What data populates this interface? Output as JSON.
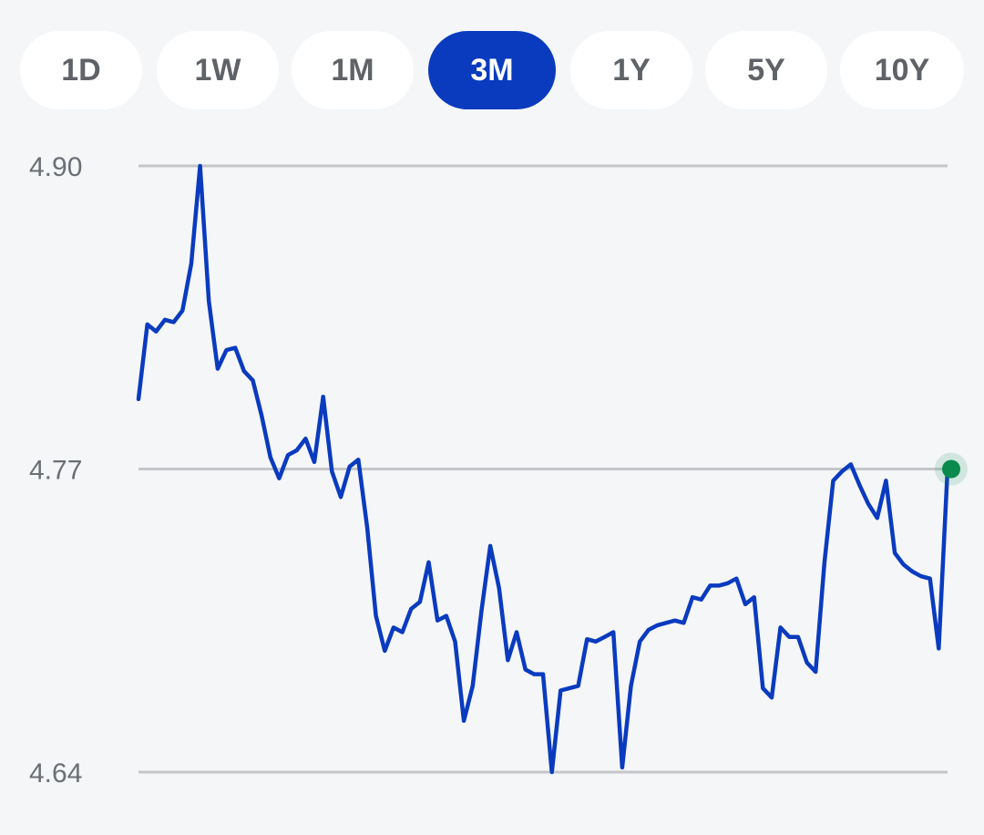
{
  "range_selector": {
    "options": [
      "1D",
      "1W",
      "1M",
      "3M",
      "1Y",
      "5Y",
      "10Y"
    ],
    "selected": "3M"
  },
  "colors": {
    "line": "#0a3bbf",
    "active_button": "#0a3bbf",
    "last_point": "#0b8a4e",
    "gridline": "#c4c6c9"
  },
  "chart_data": {
    "type": "line",
    "title": "",
    "xlabel": "",
    "ylabel": "",
    "ylim": [
      4.64,
      4.9
    ],
    "yticks": [
      4.9,
      4.77,
      4.64
    ],
    "ytick_labels": [
      "4.90",
      "4.77",
      "4.64"
    ],
    "grid": true,
    "last_point_marker": true,
    "series": [
      {
        "values": [
          4.8,
          4.832,
          4.829,
          4.834,
          4.833,
          4.838,
          4.858,
          4.9,
          4.842,
          4.813,
          4.821,
          4.822,
          4.812,
          4.808,
          4.793,
          4.775,
          4.766,
          4.776,
          4.778,
          4.783,
          4.773,
          4.801,
          4.769,
          4.758,
          4.771,
          4.774,
          4.745,
          4.707,
          4.692,
          4.702,
          4.7,
          4.71,
          4.713,
          4.73,
          4.705,
          4.707,
          4.696,
          4.662,
          4.677,
          4.709,
          4.737,
          4.719,
          4.688,
          4.7,
          4.684,
          4.682,
          4.682,
          4.64,
          4.675,
          4.676,
          4.677,
          4.697,
          4.696,
          4.698,
          4.7,
          4.642,
          4.677,
          4.696,
          4.701,
          4.703,
          4.704,
          4.705,
          4.704,
          4.715,
          4.714,
          4.72,
          4.72,
          4.721,
          4.723,
          4.712,
          4.715,
          4.676,
          4.672,
          4.702,
          4.698,
          4.698,
          4.687,
          4.683,
          4.73,
          4.765,
          4.769,
          4.772,
          4.763,
          4.755,
          4.749,
          4.765,
          4.734,
          4.729,
          4.726,
          4.724,
          4.723,
          4.693,
          4.77
        ]
      }
    ]
  }
}
